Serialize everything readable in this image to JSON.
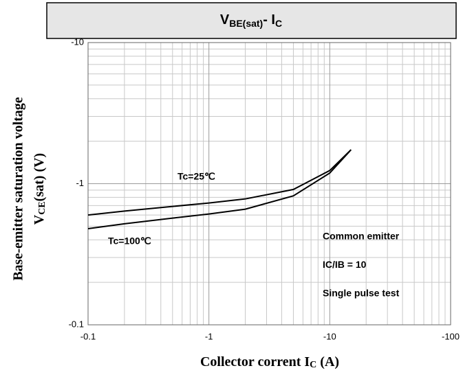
{
  "chart_data": {
    "type": "line",
    "title": [
      "V",
      "BE(sat)",
      "- I",
      "C"
    ],
    "x_label": [
      "Collector corrent I",
      "C",
      " (A)"
    ],
    "y_label": [
      "Base-emitter saturation voltage",
      "V",
      "CE",
      "(sat) (V)"
    ],
    "x": [
      -0.1,
      -0.2,
      -0.5,
      -1,
      -2,
      -5,
      -10,
      -15
    ],
    "series": [
      {
        "name": "Tc=25℃",
        "color": "#000000",
        "values": [
          -0.6,
          -0.64,
          -0.69,
          -0.73,
          -0.78,
          -0.91,
          -1.24,
          -1.74
        ]
      },
      {
        "name": "Tc=100℃",
        "color": "#000000",
        "values": [
          -0.48,
          -0.52,
          -0.57,
          -0.61,
          -0.66,
          -0.82,
          -1.19,
          -1.74
        ]
      }
    ],
    "annotations": [
      "Common emitter",
      "IC/IB = 10",
      "Single pulse test"
    ],
    "xlim": [
      -0.1,
      -100
    ],
    "ylim": [
      -0.1,
      -10
    ],
    "xticks": [
      -0.1,
      -1,
      -10,
      -100
    ],
    "yticks": [
      -0.1,
      -1,
      -10
    ],
    "log_x": true,
    "log_y": true,
    "grid": true,
    "minor_grid": true
  }
}
